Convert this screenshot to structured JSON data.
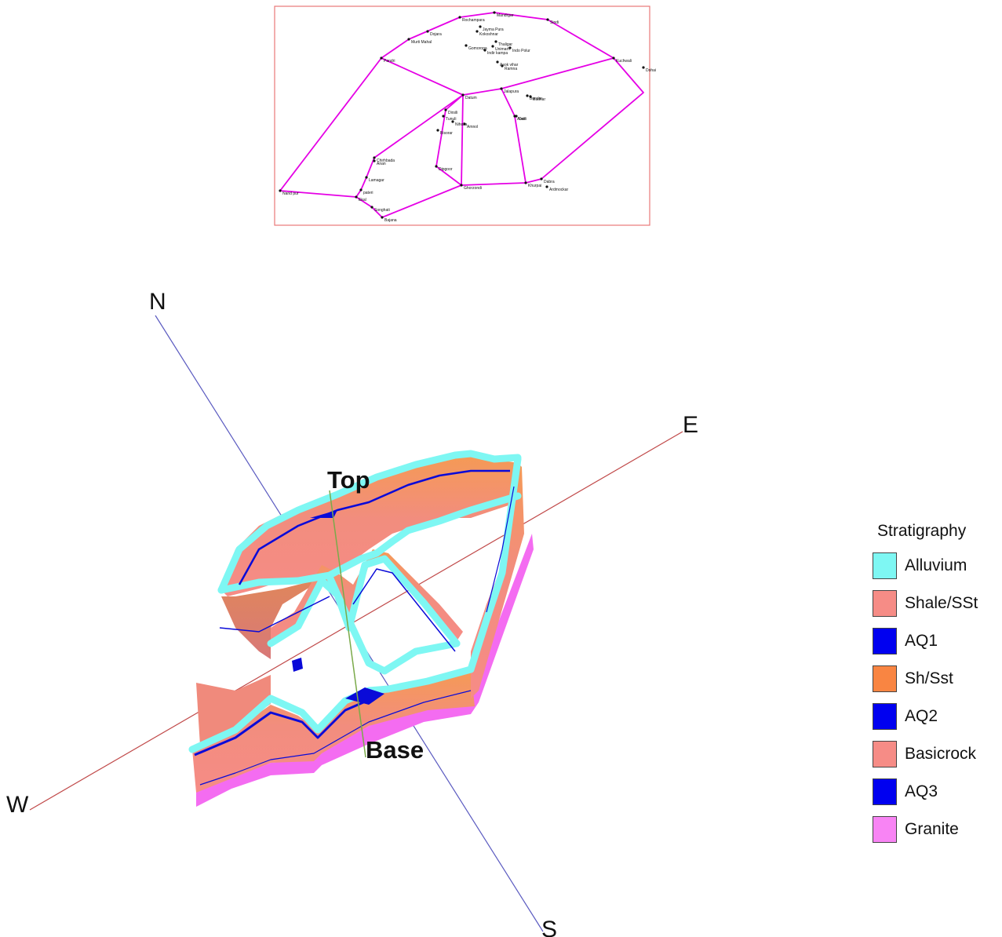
{
  "map": {
    "stations": [
      {
        "name": "Rochampara"
      },
      {
        "name": "Mandrgar"
      },
      {
        "name": "Sindi"
      },
      {
        "name": "Dojara"
      },
      {
        "name": "Jayma Pura"
      },
      {
        "name": "Kokoshnar"
      },
      {
        "name": "Murti Mahal"
      },
      {
        "name": "Thaligar"
      },
      {
        "name": "Gomoroga"
      },
      {
        "name": "Unimarh"
      },
      {
        "name": "Indo Polur"
      },
      {
        "name": "Indir kampa"
      },
      {
        "name": "Pandri"
      },
      {
        "name": "Asok vihar"
      },
      {
        "name": "Ramna"
      },
      {
        "name": "Kuchwali"
      },
      {
        "name": "Dohai"
      },
      {
        "name": "Datum"
      },
      {
        "name": "Jalapura"
      },
      {
        "name": "Bundar"
      },
      {
        "name": "Budhar"
      },
      {
        "name": "Dalli"
      },
      {
        "name": "Dirsili"
      },
      {
        "name": "Tunuli"
      },
      {
        "name": "Nihoila"
      },
      {
        "name": "Amnol"
      },
      {
        "name": "Bisorar"
      },
      {
        "name": "Aonri"
      },
      {
        "name": "Chirhbada"
      },
      {
        "name": "Anan"
      },
      {
        "name": "Dipgoor"
      },
      {
        "name": "Lamagar"
      },
      {
        "name": "Dabra"
      },
      {
        "name": "Khurpai"
      },
      {
        "name": "Ardmockar"
      },
      {
        "name": "Ghorzondi"
      },
      {
        "name": "pateri"
      },
      {
        "name": "Nand pur"
      },
      {
        "name": "Ekal"
      },
      {
        "name": "Songhati"
      },
      {
        "name": "Bajana"
      }
    ]
  },
  "axes": {
    "north": "N",
    "south": "S",
    "east": "E",
    "west": "W"
  },
  "labels3d": {
    "top": "Top",
    "base": "Base"
  },
  "legend": {
    "title": "Stratigraphy",
    "items": [
      {
        "label": "Alluvium",
        "color": "#7ef7f3"
      },
      {
        "label": "Shale/SSt",
        "color": "#f68c86"
      },
      {
        "label": "AQ1",
        "color": "#0000f0"
      },
      {
        "label": "Sh/Sst",
        "color": "#f98542"
      },
      {
        "label": "AQ2",
        "color": "#0000f0"
      },
      {
        "label": "Basicrock",
        "color": "#f68c86"
      },
      {
        "label": "AQ3",
        "color": "#0000f0"
      },
      {
        "label": "Granite",
        "color": "#f884f4"
      }
    ]
  },
  "colors": {
    "map_border": "#e87878",
    "map_lines": "#e500e5",
    "ns_axis": "#5a5ac0",
    "ew_axis": "#c04848",
    "granite": "#f46cf1",
    "alluvium": "#7ef7f3",
    "shale": "#f68c86",
    "sh_sst": "#f59a55",
    "aquifer": "#0a0ad8"
  }
}
